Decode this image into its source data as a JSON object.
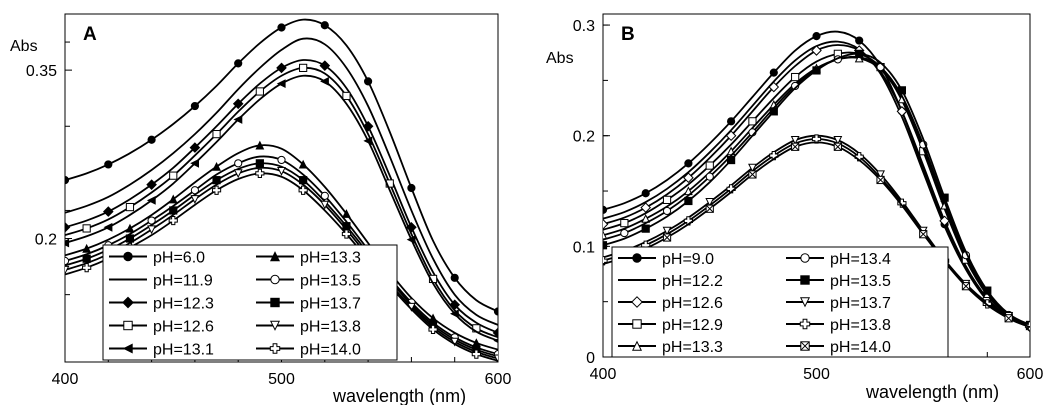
{
  "chart_data": [
    {
      "panel_label": "A",
      "type": "line",
      "ylabel": "Abs",
      "xlabel": "wavelength (nm)",
      "xlim": [
        400,
        600
      ],
      "ylim": [
        0.09,
        0.4
      ],
      "x_ticks": [
        400,
        500,
        600
      ],
      "y_ticks": [
        0.2,
        0.35
      ],
      "y_tick_labels": [
        "0.2",
        "0.35"
      ],
      "legend": "bottom-center",
      "x": [
        400,
        410,
        420,
        430,
        440,
        450,
        460,
        470,
        480,
        490,
        500,
        510,
        520,
        530,
        540,
        550,
        560,
        570,
        580,
        590,
        600
      ],
      "series": [
        {
          "name": "pH=6.0",
          "marker": "circle-filled",
          "values": [
            0.252,
            0.258,
            0.266,
            0.276,
            0.288,
            0.302,
            0.318,
            0.336,
            0.356,
            0.374,
            0.388,
            0.395,
            0.39,
            0.372,
            0.34,
            0.295,
            0.245,
            0.198,
            0.165,
            0.145,
            0.135
          ]
        },
        {
          "name": "pH=11.9",
          "marker": "none",
          "values": [
            0.223,
            0.229,
            0.237,
            0.248,
            0.261,
            0.276,
            0.293,
            0.312,
            0.333,
            0.352,
            0.368,
            0.378,
            0.373,
            0.352,
            0.318,
            0.273,
            0.225,
            0.182,
            0.15,
            0.132,
            0.123
          ]
        },
        {
          "name": "pH=12.3",
          "marker": "diamond-filled",
          "values": [
            0.21,
            0.216,
            0.224,
            0.235,
            0.248,
            0.263,
            0.281,
            0.3,
            0.32,
            0.338,
            0.352,
            0.359,
            0.354,
            0.334,
            0.3,
            0.256,
            0.21,
            0.17,
            0.141,
            0.125,
            0.116
          ]
        },
        {
          "name": "pH=12.6",
          "marker": "square-open",
          "values": [
            0.203,
            0.209,
            0.217,
            0.228,
            0.241,
            0.256,
            0.274,
            0.293,
            0.313,
            0.331,
            0.345,
            0.352,
            0.347,
            0.327,
            0.293,
            0.249,
            0.204,
            0.164,
            0.136,
            0.12,
            0.112
          ]
        },
        {
          "name": "pH=13.1",
          "marker": "triangle-left",
          "values": [
            0.196,
            0.202,
            0.21,
            0.221,
            0.234,
            0.249,
            0.267,
            0.286,
            0.306,
            0.324,
            0.338,
            0.345,
            0.34,
            0.32,
            0.287,
            0.243,
            0.199,
            0.16,
            0.133,
            0.117,
            0.109
          ]
        },
        {
          "name": "pH=13.3",
          "marker": "triangle-filled",
          "values": [
            0.185,
            0.191,
            0.199,
            0.209,
            0.221,
            0.235,
            0.25,
            0.264,
            0.276,
            0.283,
            0.28,
            0.266,
            0.246,
            0.222,
            0.196,
            0.17,
            0.147,
            0.129,
            0.116,
            0.107,
            0.101
          ]
        },
        {
          "name": "pH=13.5",
          "marker": "circle-open",
          "values": [
            0.18,
            0.186,
            0.194,
            0.204,
            0.216,
            0.229,
            0.243,
            0.257,
            0.267,
            0.273,
            0.27,
            0.257,
            0.238,
            0.215,
            0.19,
            0.165,
            0.143,
            0.125,
            0.112,
            0.103,
            0.097
          ]
        },
        {
          "name": "pH=13.7",
          "marker": "square-filled",
          "values": [
            0.176,
            0.182,
            0.19,
            0.2,
            0.212,
            0.225,
            0.239,
            0.252,
            0.262,
            0.267,
            0.264,
            0.252,
            0.233,
            0.211,
            0.187,
            0.163,
            0.141,
            0.123,
            0.11,
            0.101,
            0.095
          ]
        },
        {
          "name": "pH=13.8",
          "marker": "triangle-down",
          "values": [
            0.172,
            0.178,
            0.186,
            0.196,
            0.208,
            0.221,
            0.235,
            0.248,
            0.258,
            0.263,
            0.26,
            0.248,
            0.23,
            0.208,
            0.184,
            0.16,
            0.139,
            0.121,
            0.108,
            0.099,
            0.093
          ]
        },
        {
          "name": "pH=14.0",
          "marker": "plus-open",
          "values": [
            0.168,
            0.174,
            0.182,
            0.192,
            0.203,
            0.216,
            0.23,
            0.243,
            0.253,
            0.258,
            0.255,
            0.243,
            0.225,
            0.204,
            0.181,
            0.158,
            0.137,
            0.119,
            0.106,
            0.097,
            0.091
          ]
        }
      ]
    },
    {
      "panel_label": "B",
      "type": "line",
      "ylabel": "Abs",
      "xlabel": "wavelength (nm)",
      "xlim": [
        400,
        600
      ],
      "ylim": [
        0,
        0.31
      ],
      "x_ticks": [
        400,
        500,
        600
      ],
      "y_ticks": [
        0,
        0.1,
        0.2,
        0.3
      ],
      "y_tick_labels": [
        "0",
        "0.1",
        "0.2",
        "0.3"
      ],
      "legend": "bottom-center",
      "x": [
        400,
        410,
        420,
        430,
        440,
        450,
        460,
        470,
        480,
        490,
        500,
        510,
        520,
        530,
        540,
        550,
        560,
        570,
        580,
        590,
        600
      ],
      "series": [
        {
          "name": "pH=9.0",
          "marker": "circle-filled",
          "values": [
            0.133,
            0.139,
            0.148,
            0.16,
            0.175,
            0.193,
            0.213,
            0.235,
            0.257,
            0.277,
            0.29,
            0.294,
            0.286,
            0.263,
            0.222,
            0.17,
            0.12,
            0.08,
            0.052,
            0.036,
            0.028
          ]
        },
        {
          "name": "pH=12.2",
          "marker": "none",
          "values": [
            0.125,
            0.131,
            0.14,
            0.152,
            0.167,
            0.185,
            0.205,
            0.227,
            0.249,
            0.268,
            0.281,
            0.285,
            0.278,
            0.256,
            0.217,
            0.167,
            0.118,
            0.079,
            0.051,
            0.035,
            0.027
          ]
        },
        {
          "name": "pH=12.6",
          "marker": "diamond-open",
          "values": [
            0.12,
            0.126,
            0.135,
            0.147,
            0.162,
            0.18,
            0.2,
            0.222,
            0.244,
            0.263,
            0.277,
            0.282,
            0.277,
            0.258,
            0.222,
            0.173,
            0.123,
            0.082,
            0.053,
            0.036,
            0.027
          ]
        },
        {
          "name": "pH=12.9",
          "marker": "square-open",
          "values": [
            0.115,
            0.121,
            0.13,
            0.142,
            0.156,
            0.173,
            0.192,
            0.213,
            0.234,
            0.253,
            0.267,
            0.274,
            0.274,
            0.262,
            0.232,
            0.186,
            0.134,
            0.088,
            0.056,
            0.037,
            0.027
          ]
        },
        {
          "name": "pH=13.3",
          "marker": "triangle-open",
          "values": [
            0.11,
            0.116,
            0.125,
            0.136,
            0.15,
            0.167,
            0.186,
            0.207,
            0.228,
            0.247,
            0.261,
            0.269,
            0.27,
            0.26,
            0.233,
            0.189,
            0.137,
            0.09,
            0.057,
            0.038,
            0.028
          ]
        },
        {
          "name": "pH=13.4",
          "marker": "circle-open",
          "values": [
            0.106,
            0.112,
            0.121,
            0.132,
            0.146,
            0.163,
            0.182,
            0.203,
            0.225,
            0.245,
            0.26,
            0.269,
            0.271,
            0.262,
            0.236,
            0.192,
            0.14,
            0.092,
            0.058,
            0.038,
            0.028
          ]
        },
        {
          "name": "pH=13.5",
          "marker": "square-filled",
          "values": [
            0.101,
            0.107,
            0.116,
            0.127,
            0.141,
            0.158,
            0.178,
            0.2,
            0.222,
            0.243,
            0.259,
            0.27,
            0.274,
            0.266,
            0.241,
            0.197,
            0.144,
            0.095,
            0.06,
            0.039,
            0.029
          ]
        },
        {
          "name": "pH=13.7",
          "marker": "triangle-down",
          "values": [
            0.09,
            0.096,
            0.104,
            0.114,
            0.126,
            0.14,
            0.155,
            0.171,
            0.185,
            0.196,
            0.2,
            0.196,
            0.184,
            0.165,
            0.141,
            0.114,
            0.088,
            0.066,
            0.049,
            0.037,
            0.029
          ]
        },
        {
          "name": "pH=13.8",
          "marker": "plus-open",
          "values": [
            0.087,
            0.093,
            0.101,
            0.111,
            0.123,
            0.137,
            0.152,
            0.168,
            0.182,
            0.193,
            0.197,
            0.193,
            0.181,
            0.162,
            0.139,
            0.112,
            0.087,
            0.065,
            0.048,
            0.036,
            0.028
          ]
        },
        {
          "name": "pH=14.0",
          "marker": "x-box",
          "values": [
            0.084,
            0.09,
            0.098,
            0.108,
            0.12,
            0.134,
            0.149,
            0.165,
            0.179,
            0.19,
            0.194,
            0.19,
            0.178,
            0.16,
            0.137,
            0.111,
            0.086,
            0.064,
            0.047,
            0.035,
            0.027
          ]
        }
      ]
    }
  ]
}
